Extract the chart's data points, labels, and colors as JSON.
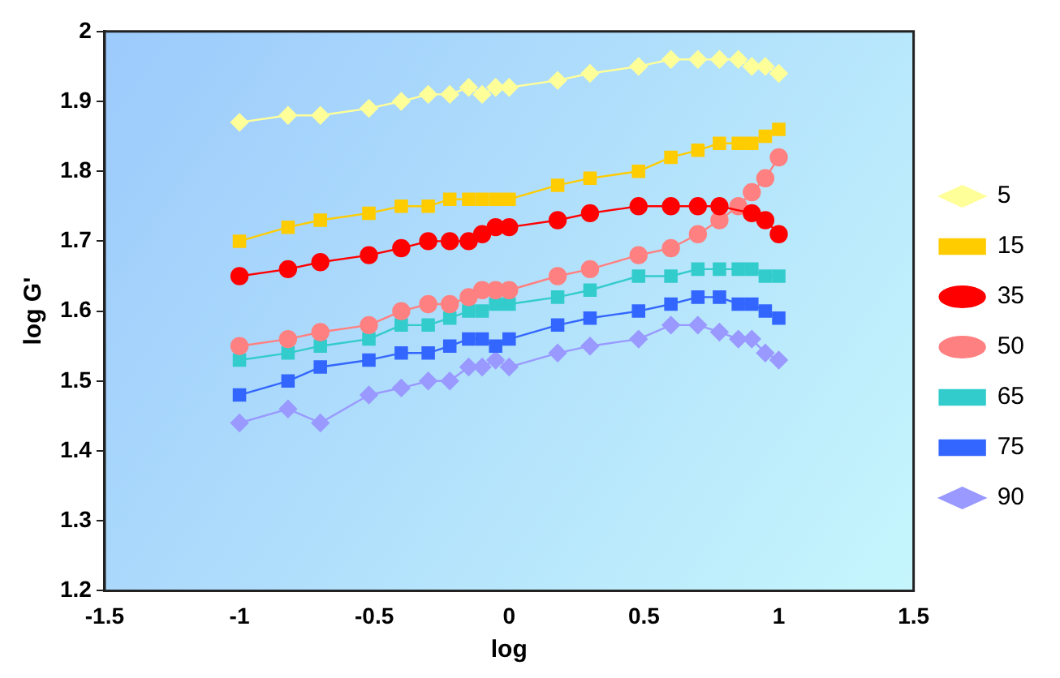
{
  "chart_data": {
    "type": "line",
    "xlabel": "log",
    "ylabel": "log G'",
    "xlim": [
      -1.5,
      1.5
    ],
    "xticks": [
      -1.5,
      -1,
      -0.5,
      0,
      0.5,
      1,
      1.5
    ],
    "ylim": [
      1.2,
      2
    ],
    "yticks": [
      1.2,
      1.3,
      1.4,
      1.5,
      1.6,
      1.7,
      1.8,
      1.9,
      2
    ],
    "legend": "right",
    "line_style": "solid",
    "x": [
      -1,
      -0.82,
      -0.7,
      -0.52,
      -0.4,
      -0.3,
      -0.22,
      -0.15,
      -0.1,
      -0.05,
      0,
      0.18,
      0.3,
      0.48,
      0.6,
      0.7,
      0.78,
      0.85,
      0.9,
      0.95,
      1
    ],
    "series": [
      {
        "name": "5",
        "color": "#ffff99",
        "marker": "diamond",
        "values": [
          1.87,
          1.88,
          1.88,
          1.89,
          1.9,
          1.91,
          1.91,
          1.92,
          1.91,
          1.92,
          1.92,
          1.93,
          1.94,
          1.95,
          1.96,
          1.96,
          1.96,
          1.96,
          1.95,
          1.95,
          1.94
        ]
      },
      {
        "name": "15",
        "color": "#ffcc00",
        "marker": "square",
        "values": [
          1.7,
          1.72,
          1.73,
          1.74,
          1.75,
          1.75,
          1.76,
          1.76,
          1.76,
          1.76,
          1.76,
          1.78,
          1.79,
          1.8,
          1.82,
          1.83,
          1.84,
          1.84,
          1.84,
          1.85,
          1.86
        ]
      },
      {
        "name": "35",
        "color": "#ff0000",
        "marker": "circle",
        "values": [
          1.65,
          1.66,
          1.67,
          1.68,
          1.69,
          1.7,
          1.7,
          1.7,
          1.71,
          1.72,
          1.72,
          1.73,
          1.74,
          1.75,
          1.75,
          1.75,
          1.75,
          null,
          1.74,
          1.73,
          1.71
        ]
      },
      {
        "name": "50",
        "color": "#ff8080",
        "marker": "circle",
        "values": [
          1.55,
          1.56,
          1.57,
          1.58,
          1.6,
          1.61,
          1.61,
          1.62,
          1.63,
          1.63,
          1.63,
          1.65,
          1.66,
          1.68,
          1.69,
          1.71,
          1.73,
          1.75,
          1.77,
          1.79,
          1.82
        ]
      },
      {
        "name": "65",
        "color": "#33cccc",
        "marker": "square",
        "values": [
          1.53,
          1.54,
          1.55,
          1.56,
          1.58,
          1.58,
          1.59,
          1.6,
          1.6,
          1.61,
          1.61,
          1.62,
          1.63,
          1.65,
          1.65,
          1.66,
          1.66,
          1.66,
          1.66,
          1.65,
          1.65
        ]
      },
      {
        "name": "75",
        "color": "#3366ff",
        "marker": "square",
        "values": [
          1.48,
          1.5,
          1.52,
          1.53,
          1.54,
          1.54,
          1.55,
          1.56,
          1.56,
          1.55,
          1.56,
          1.58,
          1.59,
          1.6,
          1.61,
          1.62,
          1.62,
          1.61,
          1.61,
          1.6,
          1.59
        ]
      },
      {
        "name": "90",
        "color": "#9999ff",
        "marker": "diamond",
        "values": [
          1.44,
          1.46,
          1.44,
          1.48,
          1.49,
          1.5,
          1.5,
          1.52,
          1.52,
          1.53,
          1.52,
          1.54,
          1.55,
          1.56,
          1.58,
          1.58,
          1.57,
          1.56,
          1.56,
          1.54,
          1.53
        ]
      }
    ]
  }
}
